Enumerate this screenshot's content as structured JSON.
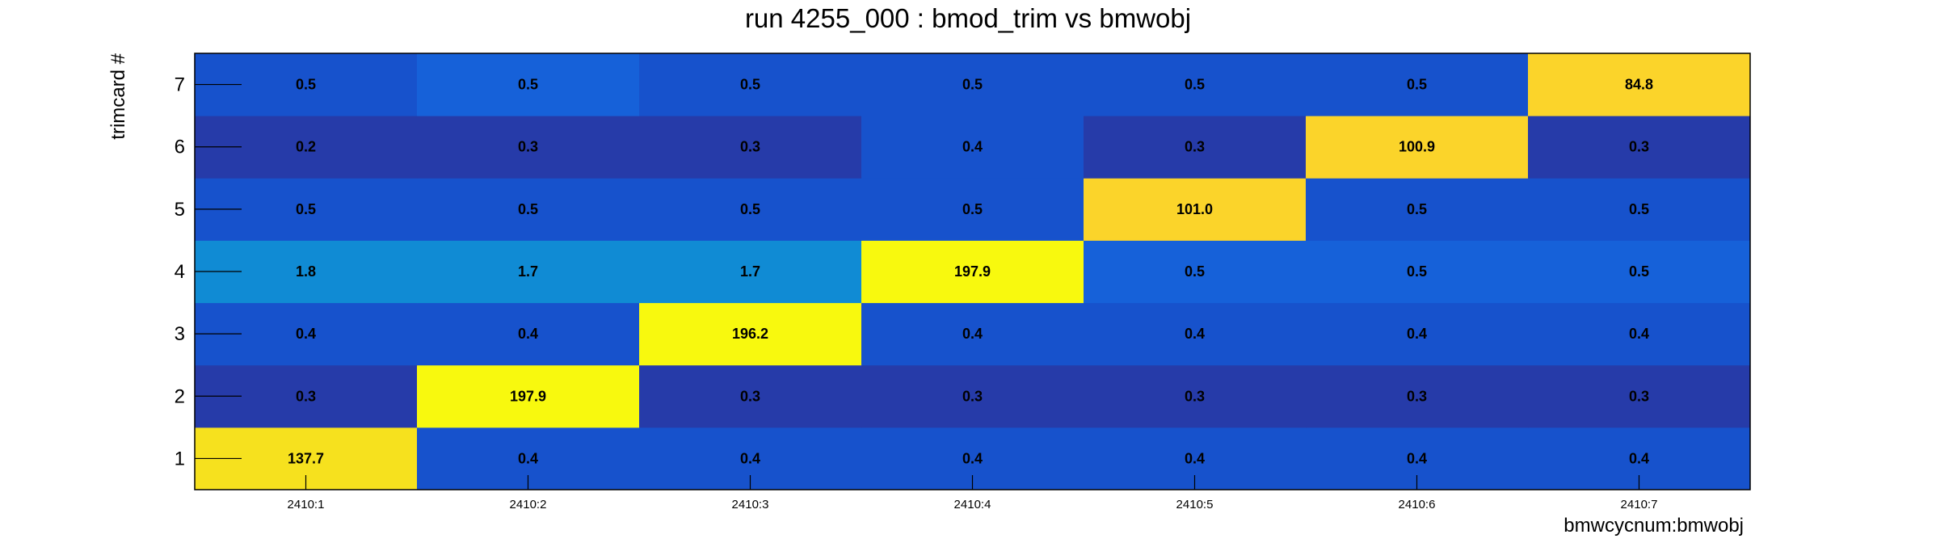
{
  "chart_data": {
    "type": "heatmap",
    "title": "run 4255_000 : bmod_trim vs bmwobj",
    "xlabel": "bmwcycnum:bmwobj",
    "ylabel": "trimcard #",
    "x_categories": [
      "2410:1",
      "2410:2",
      "2410:3",
      "2410:4",
      "2410:5",
      "2410:6",
      "2410:7"
    ],
    "y_categories": [
      "1",
      "2",
      "3",
      "4",
      "5",
      "6",
      "7"
    ],
    "values": [
      [
        137.7,
        0.4,
        0.4,
        0.4,
        0.4,
        0.4,
        0.4
      ],
      [
        0.3,
        197.9,
        0.3,
        0.3,
        0.3,
        0.3,
        0.3
      ],
      [
        0.4,
        0.4,
        196.2,
        0.4,
        0.4,
        0.4,
        0.4
      ],
      [
        1.8,
        1.7,
        1.7,
        197.9,
        0.5,
        0.5,
        0.5
      ],
      [
        0.5,
        0.5,
        0.5,
        0.5,
        101.0,
        0.5,
        0.5
      ],
      [
        0.2,
        0.3,
        0.3,
        0.4,
        0.3,
        100.9,
        0.3
      ],
      [
        0.5,
        0.5,
        0.5,
        0.5,
        0.5,
        0.5,
        84.8
      ]
    ],
    "value_labels": [
      [
        "137.7",
        "0.4",
        "0.4",
        "0.4",
        "0.4",
        "0.4",
        "0.4"
      ],
      [
        "0.3",
        "197.9",
        "0.3",
        "0.3",
        "0.3",
        "0.3",
        "0.3"
      ],
      [
        "0.4",
        "0.4",
        "196.2",
        "0.4",
        "0.4",
        "0.4",
        "0.4"
      ],
      [
        "1.8",
        "1.7",
        "1.7",
        "197.9",
        "0.5",
        "0.5",
        "0.5"
      ],
      [
        "0.5",
        "0.5",
        "0.5",
        "0.5",
        "101.0",
        "0.5",
        "0.5"
      ],
      [
        "0.2",
        "0.3",
        "0.3",
        "0.4",
        "0.3",
        "100.9",
        "0.3"
      ],
      [
        "0.5",
        "0.5",
        "0.5",
        "0.5",
        "0.5",
        "0.5",
        "84.8"
      ]
    ],
    "colors": [
      [
        "#f6e11e",
        "#1752cc",
        "#1752cc",
        "#1752cc",
        "#1752cc",
        "#1752cc",
        "#1752cc"
      ],
      [
        "#263ba9",
        "#f8f90e",
        "#263ba9",
        "#263ba9",
        "#263ba9",
        "#263ba9",
        "#263ba9"
      ],
      [
        "#1752cc",
        "#1752cc",
        "#f8f90e",
        "#1752cc",
        "#1752cc",
        "#1752cc",
        "#1752cc"
      ],
      [
        "#108bd4",
        "#108bd4",
        "#108bd4",
        "#f8f90e",
        "#1661d9",
        "#1661d9",
        "#1661d9"
      ],
      [
        "#1752cc",
        "#1752cc",
        "#1752cc",
        "#1752cc",
        "#fbd42a",
        "#1752cc",
        "#1752cc"
      ],
      [
        "#263ba9",
        "#263ba9",
        "#263ba9",
        "#1752cc",
        "#263ba9",
        "#fbd42a",
        "#263ba9"
      ],
      [
        "#1752cc",
        "#1661d9",
        "#1752cc",
        "#1752cc",
        "#1752cc",
        "#1752cc",
        "#fbd42a"
      ]
    ],
    "colorscale": "blue-to-yellow",
    "grid": false,
    "legend": "none"
  }
}
